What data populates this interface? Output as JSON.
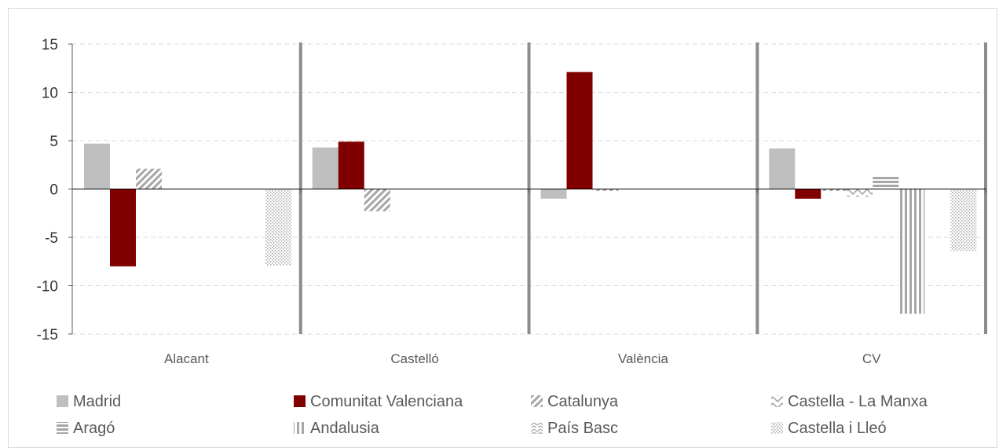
{
  "chart_data": {
    "type": "bar",
    "categories": [
      "Alacant",
      "Castelló",
      "València",
      "CV"
    ],
    "ylim": [
      -15,
      15
    ],
    "yticks": [
      15,
      10,
      5,
      0,
      -5,
      -10,
      -15
    ],
    "grid": true,
    "legend_position": "bottom",
    "series": [
      {
        "name": "Madrid",
        "values": [
          4.7,
          4.3,
          -1.0,
          4.2
        ],
        "color": "#bfbfbf",
        "pattern": "solid"
      },
      {
        "name": "Comunitat Valenciana",
        "values": [
          -8.0,
          4.9,
          12.1,
          -1.0
        ],
        "color": "#800000",
        "pattern": "solid"
      },
      {
        "name": "Catalunya",
        "values": [
          2.1,
          -2.3,
          -0.2,
          -0.2
        ],
        "color": "#a6a6a6",
        "pattern": "diag"
      },
      {
        "name": "Castella - La Manxa",
        "values": [
          0,
          0,
          0,
          -0.8
        ],
        "color": "#a6a6a6",
        "pattern": "zigzag"
      },
      {
        "name": "Aragó",
        "values": [
          0,
          0,
          0,
          1.4
        ],
        "color": "#a6a6a6",
        "pattern": "hstripe"
      },
      {
        "name": "Andalusia",
        "values": [
          0,
          0,
          0,
          -12.9
        ],
        "color": "#a6a6a6",
        "pattern": "vstripe"
      },
      {
        "name": "País Basc",
        "values": [
          0,
          0,
          0,
          0
        ],
        "color": "#a6a6a6",
        "pattern": "wave"
      },
      {
        "name": "Castella i Lleó",
        "values": [
          -7.9,
          0,
          0,
          -6.4
        ],
        "color": "#bfbfbf",
        "pattern": "dots"
      }
    ]
  }
}
